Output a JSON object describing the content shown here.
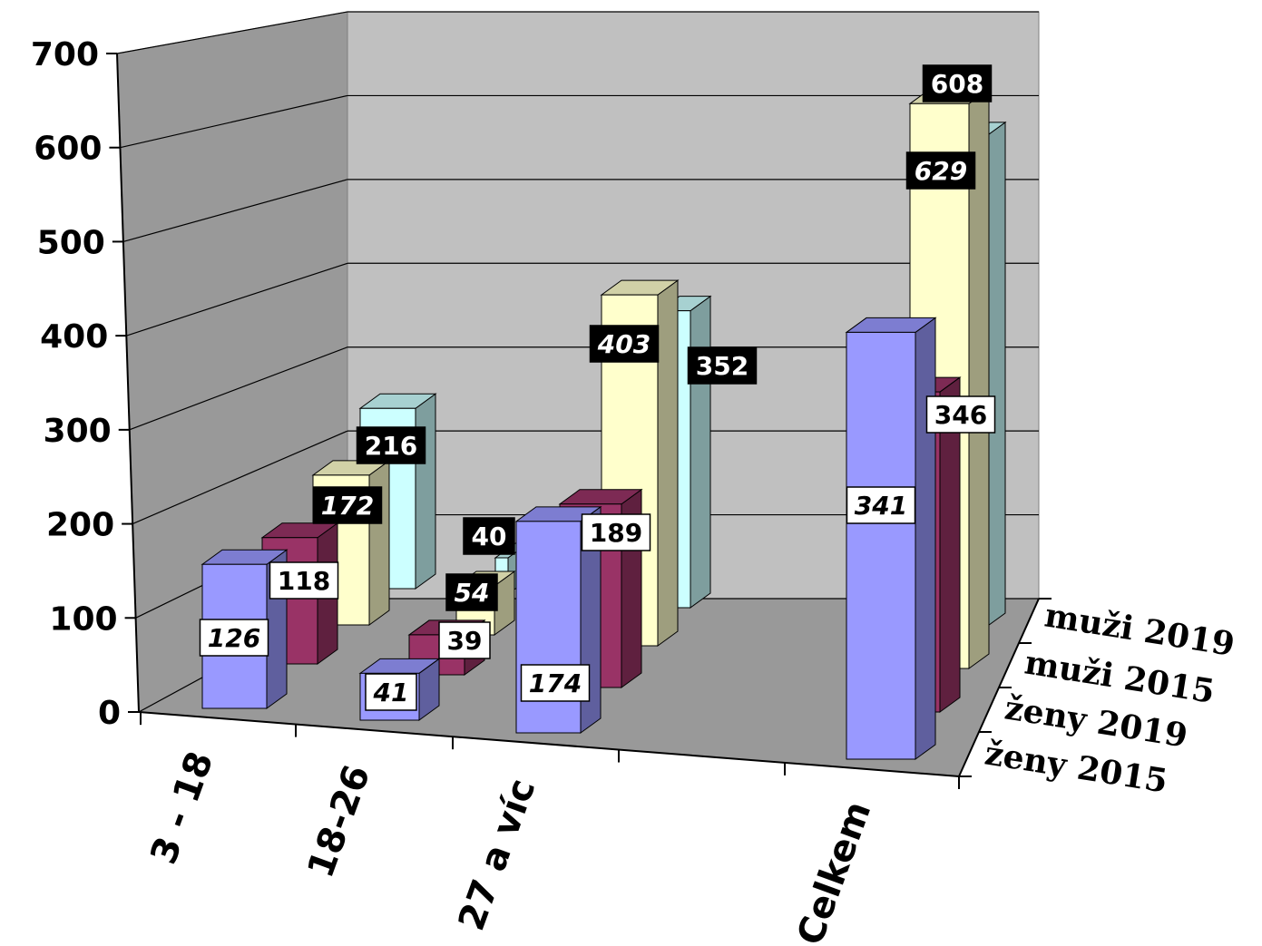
{
  "chart_data": {
    "type": "bar",
    "categories": [
      "3 - 18",
      "18-26",
      "27 a víc",
      "Celkem"
    ],
    "series": [
      {
        "name": "ženy 2015",
        "values": [
          126,
          41,
          174,
          341
        ],
        "color": "#9999ff",
        "label_style": "white-italic"
      },
      {
        "name": "ženy 2019",
        "values": [
          118,
          39,
          189,
          346
        ],
        "color": "#993366",
        "label_style": "white"
      },
      {
        "name": "muži 2015",
        "values": [
          172,
          54,
          403,
          629
        ],
        "color": "#ffffcc",
        "label_style": "black-italic"
      },
      {
        "name": "muži 2019",
        "values": [
          216,
          40,
          352,
          608
        ],
        "color": "#ccffff",
        "label_style": "black"
      }
    ],
    "yticks": [
      "0",
      "100",
      "200",
      "300",
      "400",
      "500",
      "600",
      "700"
    ],
    "ylim": [
      0,
      700
    ],
    "grid": true,
    "depth_axis_labels": [
      "muži 2019",
      "muži 2015",
      "ženy 2019",
      "ženy 2015"
    ],
    "wall_color": "#c0c0c0",
    "left_wall_color": "#999999",
    "floor_color": "#999999"
  }
}
